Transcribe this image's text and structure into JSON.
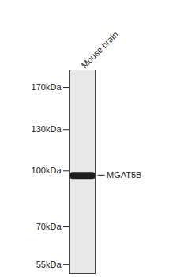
{
  "chart_data": {
    "type": "western_blot",
    "categories": [
      "Mouse brain"
    ],
    "series": [
      {
        "name": "MGAT5B",
        "color": "#1e1e1e",
        "values": [
          97
        ]
      }
    ],
    "log": "y",
    "ylim": [
      52,
      190
    ],
    "yticks": [
      {
        "value": 170,
        "label": "170kDa"
      },
      {
        "value": 130,
        "label": "130kDa"
      },
      {
        "value": 100,
        "label": "100kDa"
      },
      {
        "value": 70,
        "label": "70kDa"
      },
      {
        "value": 55,
        "label": "55kDa"
      }
    ]
  }
}
